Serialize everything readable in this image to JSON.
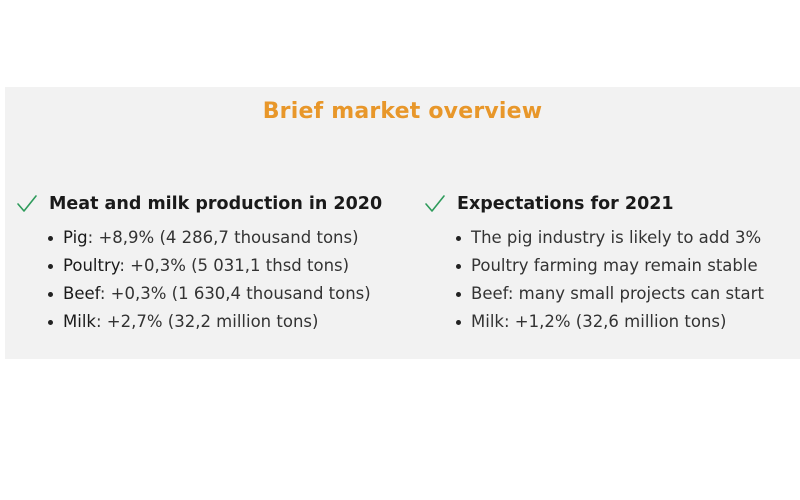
{
  "title": "Brief market overview",
  "colors": {
    "title": "#e8972a",
    "check": "#2e9b5b",
    "panel_bg": "#f2f2f2"
  },
  "left": {
    "heading": "Meat and milk production in 2020",
    "items": [
      {
        "term": "Pig",
        "rest": ": +8,9% (4 286,7 thousand tons)"
      },
      {
        "term": "Poultry",
        "rest": ": +0,3% (5 031,1 thsd tons)"
      },
      {
        "term": "Beef",
        "rest": ": +0,3% (1 630,4 thousand tons)"
      },
      {
        "term": "Milk",
        "rest": ": +2,7% (32,2 million tons)"
      }
    ]
  },
  "right": {
    "heading": "Expectations for 2021",
    "items": [
      {
        "text": "The pig industry is likely to add 3%"
      },
      {
        "text": "Poultry farming may remain stable"
      },
      {
        "text": "Beef: many small projects can start"
      },
      {
        "text": "Milk: +1,2% (32,6 million tons)"
      }
    ]
  },
  "icons": {
    "check": "check-icon"
  }
}
